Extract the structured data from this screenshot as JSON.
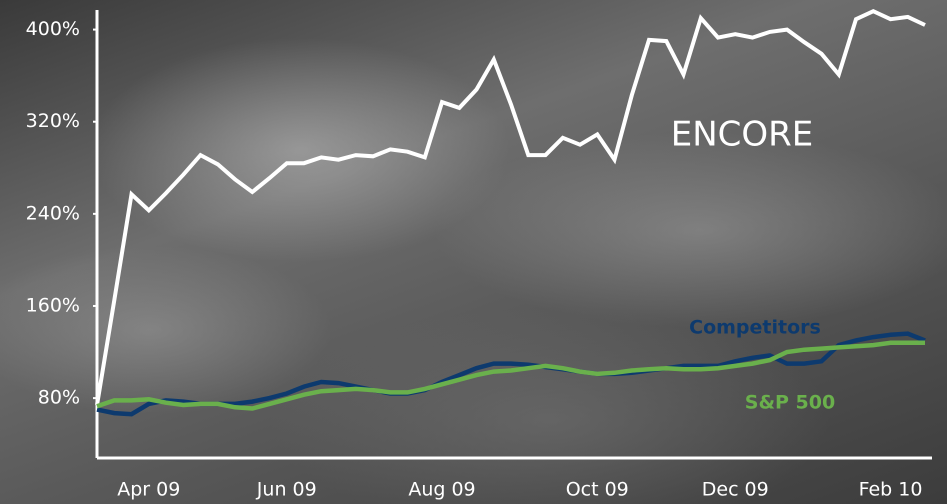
{
  "chart_data": {
    "type": "line",
    "categories": [
      null,
      null,
      null,
      "Apr 09",
      null,
      null,
      null,
      null,
      null,
      null,
      null,
      "Jun 09",
      null,
      null,
      null,
      null,
      null,
      null,
      null,
      null,
      "Aug 09",
      null,
      null,
      null,
      null,
      null,
      null,
      null,
      null,
      "Oct 09",
      null,
      null,
      null,
      null,
      null,
      null,
      null,
      "Dec 09",
      null,
      null,
      null,
      null,
      null,
      null,
      null,
      null,
      "Feb 10",
      null,
      null
    ],
    "series": [
      {
        "name": "ENCORE",
        "color": "#ffffff",
        "values": [
          74,
          165,
          257,
          243,
          258,
          274,
          291,
          283,
          270,
          259,
          271,
          284,
          284,
          289,
          287,
          291,
          290,
          296,
          294,
          289,
          337,
          332,
          348,
          374,
          335,
          291,
          291,
          306,
          300,
          309,
          287,
          343,
          391,
          390,
          361,
          410,
          393,
          396,
          393,
          398,
          400,
          389,
          379,
          361,
          409,
          416,
          409,
          411,
          404
        ]
      },
      {
        "name": "Competitors",
        "color": "#0d3a6e",
        "values": [
          70,
          67,
          66,
          75,
          78,
          77,
          75,
          75,
          75,
          77,
          80,
          84,
          90,
          94,
          93,
          90,
          87,
          84,
          84,
          87,
          94,
          100,
          106,
          110,
          110,
          109,
          107,
          105,
          103,
          101,
          101,
          102,
          104,
          106,
          108,
          108,
          108,
          112,
          115,
          117,
          110,
          110,
          112,
          126,
          130,
          133,
          135,
          136,
          130
        ]
      },
      {
        "name": "S&P 500",
        "color": "#6ab04c",
        "values": [
          73,
          78,
          78,
          79,
          76,
          74,
          75,
          75,
          72,
          71,
          75,
          79,
          83,
          86,
          87,
          88,
          87,
          85,
          85,
          88,
          92,
          96,
          100,
          103,
          104,
          106,
          108,
          106,
          103,
          101,
          102,
          104,
          105,
          106,
          105,
          105,
          106,
          108,
          110,
          113,
          120,
          122,
          123,
          124,
          125,
          126,
          128,
          128,
          128
        ]
      }
    ],
    "ylim": [
      28,
      417
    ],
    "yticks": [
      {
        "value": 80,
        "label": "80%"
      },
      {
        "value": 160,
        "label": "160%"
      },
      {
        "value": 240,
        "label": "240%"
      },
      {
        "value": 320,
        "label": "320%"
      },
      {
        "value": 400,
        "label": "400%"
      }
    ]
  }
}
